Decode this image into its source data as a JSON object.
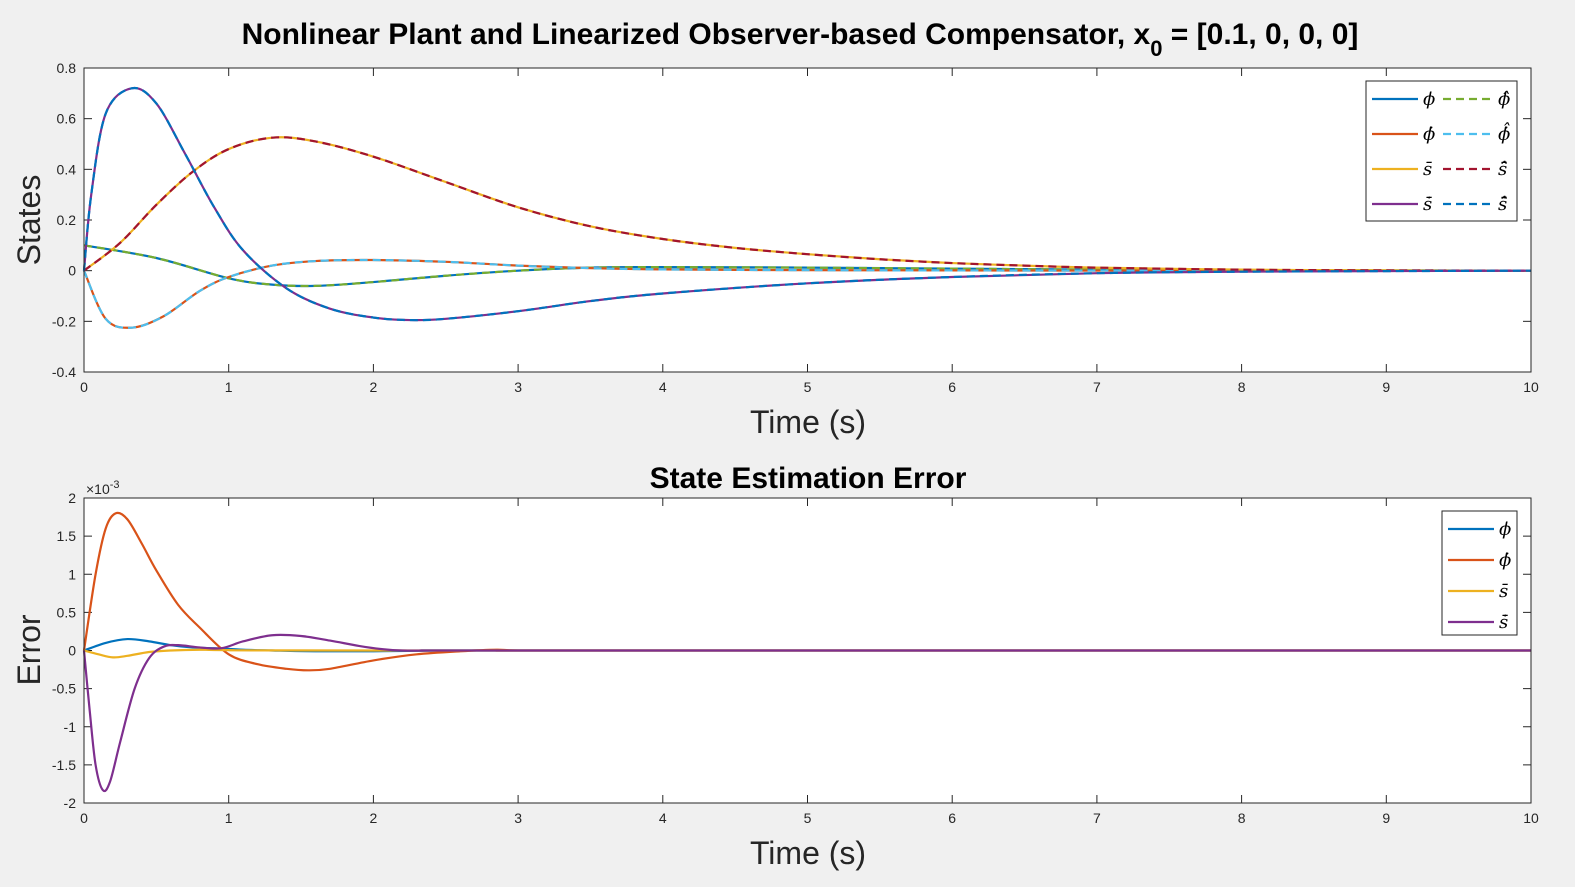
{
  "figure": {
    "title_main": "Nonlinear Plant and Linearized Observer-based Compensator, x",
    "title_sub": "0",
    "title_rest": " = [0.1, 0, 0, 0]"
  },
  "colors": {
    "blue": "#0072BD",
    "orange": "#D95319",
    "yellow": "#EDB120",
    "purple": "#7E2F8E",
    "green": "#77AC30",
    "cyan": "#4DBEEE",
    "darkred": "#A2142F"
  },
  "chart_data": [
    {
      "type": "line",
      "title": "",
      "xlabel": "Time (s)",
      "ylabel": "States",
      "xlim": [
        0,
        10
      ],
      "ylim": [
        -0.4,
        0.8
      ],
      "xticks": [
        "0",
        "1",
        "2",
        "3",
        "4",
        "5",
        "6",
        "7",
        "8",
        "9",
        "10"
      ],
      "yticks": [
        "-0.4",
        "-0.2",
        "0",
        "0.2",
        "0.4",
        "0.6",
        "0.8"
      ],
      "grid": false,
      "legend_position": "top-right",
      "legend": [
        {
          "name": "ϕ",
          "color": "blue",
          "est_name": "ϕ̂",
          "est_color": "green"
        },
        {
          "name": "ϕ̇",
          "color": "orange",
          "est_name": "ϕ̇̂",
          "est_color": "cyan"
        },
        {
          "name": "s̄",
          "color": "yellow",
          "est_name": "s̄̂",
          "est_color": "darkred"
        },
        {
          "name": "s̄̇",
          "color": "purple",
          "est_name": "s̄̇̂",
          "est_color": "blue"
        }
      ],
      "series": [
        {
          "name": "ϕ",
          "color": "blue",
          "x": [
            0,
            0.5,
            1,
            1.3,
            1.6,
            2,
            2.5,
            3,
            3.5,
            4,
            5,
            6,
            7,
            8,
            10
          ],
          "y": [
            0.1,
            0.05,
            -0.03,
            -0.055,
            -0.06,
            -0.045,
            -0.02,
            0.0,
            0.012,
            0.014,
            0.012,
            0.008,
            0.004,
            0.002,
            0
          ]
        },
        {
          "name": "ϕ̂",
          "color": "green",
          "dashed": true,
          "x": [
            0,
            0.5,
            1,
            1.3,
            1.6,
            2,
            2.5,
            3,
            3.5,
            4,
            5,
            6,
            7,
            8,
            10
          ],
          "y": [
            0.1,
            0.05,
            -0.03,
            -0.055,
            -0.06,
            -0.045,
            -0.02,
            0.0,
            0.012,
            0.014,
            0.012,
            0.008,
            0.004,
            0.002,
            0
          ]
        },
        {
          "name": "ϕ̇",
          "color": "orange",
          "x": [
            0,
            0.15,
            0.33,
            0.55,
            0.8,
            1.0,
            1.3,
            1.6,
            2.0,
            2.5,
            3,
            3.5,
            4,
            5,
            6,
            8,
            10
          ],
          "y": [
            0,
            -0.19,
            -0.225,
            -0.18,
            -0.08,
            -0.025,
            0.02,
            0.038,
            0.042,
            0.035,
            0.02,
            0.01,
            0.005,
            0.002,
            0.001,
            0,
            0
          ]
        },
        {
          "name": "ϕ̇̂",
          "color": "cyan",
          "dashed": true,
          "x": [
            0,
            0.15,
            0.33,
            0.55,
            0.8,
            1.0,
            1.3,
            1.6,
            2.0,
            2.5,
            3,
            3.5,
            4,
            5,
            6,
            8,
            10
          ],
          "y": [
            0,
            -0.19,
            -0.225,
            -0.18,
            -0.08,
            -0.025,
            0.02,
            0.038,
            0.042,
            0.035,
            0.02,
            0.01,
            0.005,
            0.002,
            0.001,
            0,
            0
          ]
        },
        {
          "name": "s̄",
          "color": "yellow",
          "x": [
            0,
            0.25,
            0.5,
            0.75,
            1.0,
            1.3,
            1.6,
            2.0,
            2.5,
            3.0,
            3.5,
            4.0,
            4.5,
            5.0,
            5.5,
            6.0,
            6.5,
            7.0,
            8.0,
            9.0,
            10.0
          ],
          "y": [
            0,
            0.11,
            0.26,
            0.39,
            0.48,
            0.525,
            0.51,
            0.45,
            0.35,
            0.25,
            0.175,
            0.125,
            0.09,
            0.065,
            0.045,
            0.03,
            0.02,
            0.012,
            0.004,
            0.001,
            0
          ]
        },
        {
          "name": "s̄̂",
          "color": "darkred",
          "dashed": true,
          "x": [
            0,
            0.25,
            0.5,
            0.75,
            1.0,
            1.3,
            1.6,
            2.0,
            2.5,
            3.0,
            3.5,
            4.0,
            4.5,
            5.0,
            5.5,
            6.0,
            6.5,
            7.0,
            8.0,
            9.0,
            10.0
          ],
          "y": [
            0,
            0.11,
            0.26,
            0.39,
            0.48,
            0.525,
            0.51,
            0.45,
            0.35,
            0.25,
            0.175,
            0.125,
            0.09,
            0.065,
            0.045,
            0.03,
            0.02,
            0.012,
            0.004,
            0.001,
            0
          ]
        },
        {
          "name": "s̄̇",
          "color": "purple",
          "x": [
            0,
            0.05,
            0.15,
            0.33,
            0.5,
            0.7,
            0.9,
            1.1,
            1.4,
            1.7,
            2.0,
            2.25,
            2.5,
            3.0,
            3.5,
            4.0,
            5.0,
            6.0,
            7.0,
            8.0,
            10.0
          ],
          "y": [
            0,
            0.3,
            0.62,
            0.72,
            0.66,
            0.46,
            0.25,
            0.08,
            -0.07,
            -0.15,
            -0.185,
            -0.195,
            -0.19,
            -0.16,
            -0.12,
            -0.09,
            -0.05,
            -0.025,
            -0.01,
            -0.004,
            0
          ]
        },
        {
          "name": "s̄̇̂",
          "color": "blue",
          "dashed": true,
          "x": [
            0,
            0.05,
            0.15,
            0.33,
            0.5,
            0.7,
            0.9,
            1.1,
            1.4,
            1.7,
            2.0,
            2.25,
            2.5,
            3.0,
            3.5,
            4.0,
            5.0,
            6.0,
            7.0,
            8.0,
            10.0
          ],
          "y": [
            0,
            0.3,
            0.62,
            0.72,
            0.66,
            0.46,
            0.25,
            0.08,
            -0.07,
            -0.15,
            -0.185,
            -0.195,
            -0.19,
            -0.16,
            -0.12,
            -0.09,
            -0.05,
            -0.025,
            -0.01,
            -0.004,
            0
          ]
        }
      ]
    },
    {
      "type": "line",
      "title": "State Estimation Error",
      "xlabel": "Time (s)",
      "ylabel": "Error",
      "xlim": [
        0,
        10
      ],
      "ylim": [
        -2,
        2
      ],
      "yscale_label": "×10",
      "yscale_exp": "-3",
      "xticks": [
        "0",
        "1",
        "2",
        "3",
        "4",
        "5",
        "6",
        "7",
        "8",
        "9",
        "10"
      ],
      "yticks": [
        "-2",
        "-1.5",
        "-1",
        "-0.5",
        "0",
        "0.5",
        "1",
        "1.5",
        "2"
      ],
      "grid": false,
      "legend_position": "top-right",
      "legend": [
        {
          "name": "ϕ",
          "color": "blue"
        },
        {
          "name": "ϕ̇",
          "color": "orange"
        },
        {
          "name": "s̄",
          "color": "yellow"
        },
        {
          "name": "s̄̇",
          "color": "purple"
        }
      ],
      "series": [
        {
          "name": "ϕ",
          "color": "blue",
          "x": [
            0,
            0.15,
            0.3,
            0.45,
            0.6,
            0.75,
            0.9,
            1.1,
            1.3,
            1.6,
            2.0,
            2.5,
            3,
            10
          ],
          "y": [
            0,
            0.1,
            0.15,
            0.12,
            0.07,
            0.04,
            0.03,
            0.01,
            0.0,
            -0.01,
            -0.01,
            0,
            0,
            0
          ]
        },
        {
          "name": "ϕ̇",
          "color": "orange",
          "x": [
            0,
            0.08,
            0.15,
            0.22,
            0.3,
            0.4,
            0.5,
            0.65,
            0.8,
            1.0,
            1.2,
            1.4,
            1.55,
            1.7,
            2.0,
            2.3,
            2.6,
            2.85,
            3.0,
            3.5,
            10
          ],
          "y": [
            0,
            1.0,
            1.6,
            1.8,
            1.72,
            1.4,
            1.05,
            0.6,
            0.3,
            -0.05,
            -0.18,
            -0.24,
            -0.26,
            -0.24,
            -0.13,
            -0.05,
            -0.01,
            0.01,
            0,
            0,
            0
          ]
        },
        {
          "name": "s̄",
          "color": "yellow",
          "x": [
            0,
            0.1,
            0.2,
            0.3,
            0.45,
            0.6,
            0.8,
            1.0,
            2.0,
            10
          ],
          "y": [
            0,
            -0.05,
            -0.09,
            -0.07,
            -0.02,
            0.0,
            0.01,
            0.005,
            0,
            0
          ]
        },
        {
          "name": "s̄̇",
          "color": "purple",
          "x": [
            0,
            0.04,
            0.08,
            0.13,
            0.18,
            0.25,
            0.35,
            0.45,
            0.55,
            0.65,
            0.8,
            0.95,
            1.1,
            1.3,
            1.5,
            1.7,
            1.9,
            2.05,
            2.2,
            2.5,
            3.0,
            10
          ],
          "y": [
            0,
            -0.8,
            -1.5,
            -1.83,
            -1.72,
            -1.2,
            -0.5,
            -0.1,
            0.05,
            0.07,
            0.04,
            0.03,
            0.12,
            0.2,
            0.19,
            0.13,
            0.06,
            0.02,
            0,
            0,
            0,
            0
          ]
        }
      ]
    }
  ]
}
